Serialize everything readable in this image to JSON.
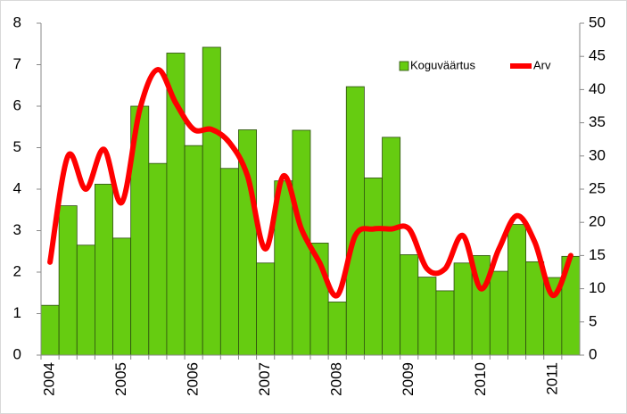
{
  "chart_data": {
    "type": "bar_line",
    "categories": [
      "2004",
      null,
      null,
      null,
      "2005",
      null,
      null,
      null,
      "2006",
      null,
      null,
      null,
      "2007",
      null,
      null,
      null,
      "2008",
      null,
      null,
      null,
      "2009",
      null,
      null,
      null,
      "2010",
      null,
      null,
      null,
      "2011",
      null
    ],
    "series": [
      {
        "name": "Koguväärtus",
        "type": "bar",
        "color": "#66cc11",
        "values": [
          1.2,
          3.6,
          2.65,
          4.12,
          2.82,
          6.0,
          4.62,
          7.28,
          5.05,
          7.42,
          4.5,
          5.43,
          2.22,
          4.2,
          5.42,
          2.7,
          1.28,
          6.47,
          4.27,
          5.25,
          2.42,
          1.88,
          1.55,
          2.22,
          2.4,
          2.02,
          3.15,
          2.25,
          1.87,
          2.38
        ]
      },
      {
        "name": "Arv",
        "type": "line",
        "axis": "y2",
        "color": "#ff0000",
        "values": [
          14,
          30,
          25,
          31,
          23,
          37,
          43,
          38,
          34,
          34,
          32,
          27,
          16,
          27,
          19,
          14,
          9,
          18,
          19,
          19,
          19,
          13,
          13,
          18,
          10,
          16,
          21,
          17,
          9,
          15
        ]
      }
    ],
    "ylim": [
      0,
      8
    ],
    "yticks": [
      0,
      1,
      2,
      3,
      4,
      5,
      6,
      7,
      8
    ],
    "y2lim": [
      0,
      50
    ],
    "y2ticks": [
      0,
      5,
      10,
      15,
      20,
      25,
      30,
      35,
      40,
      45,
      50
    ],
    "legend": "top-right"
  }
}
